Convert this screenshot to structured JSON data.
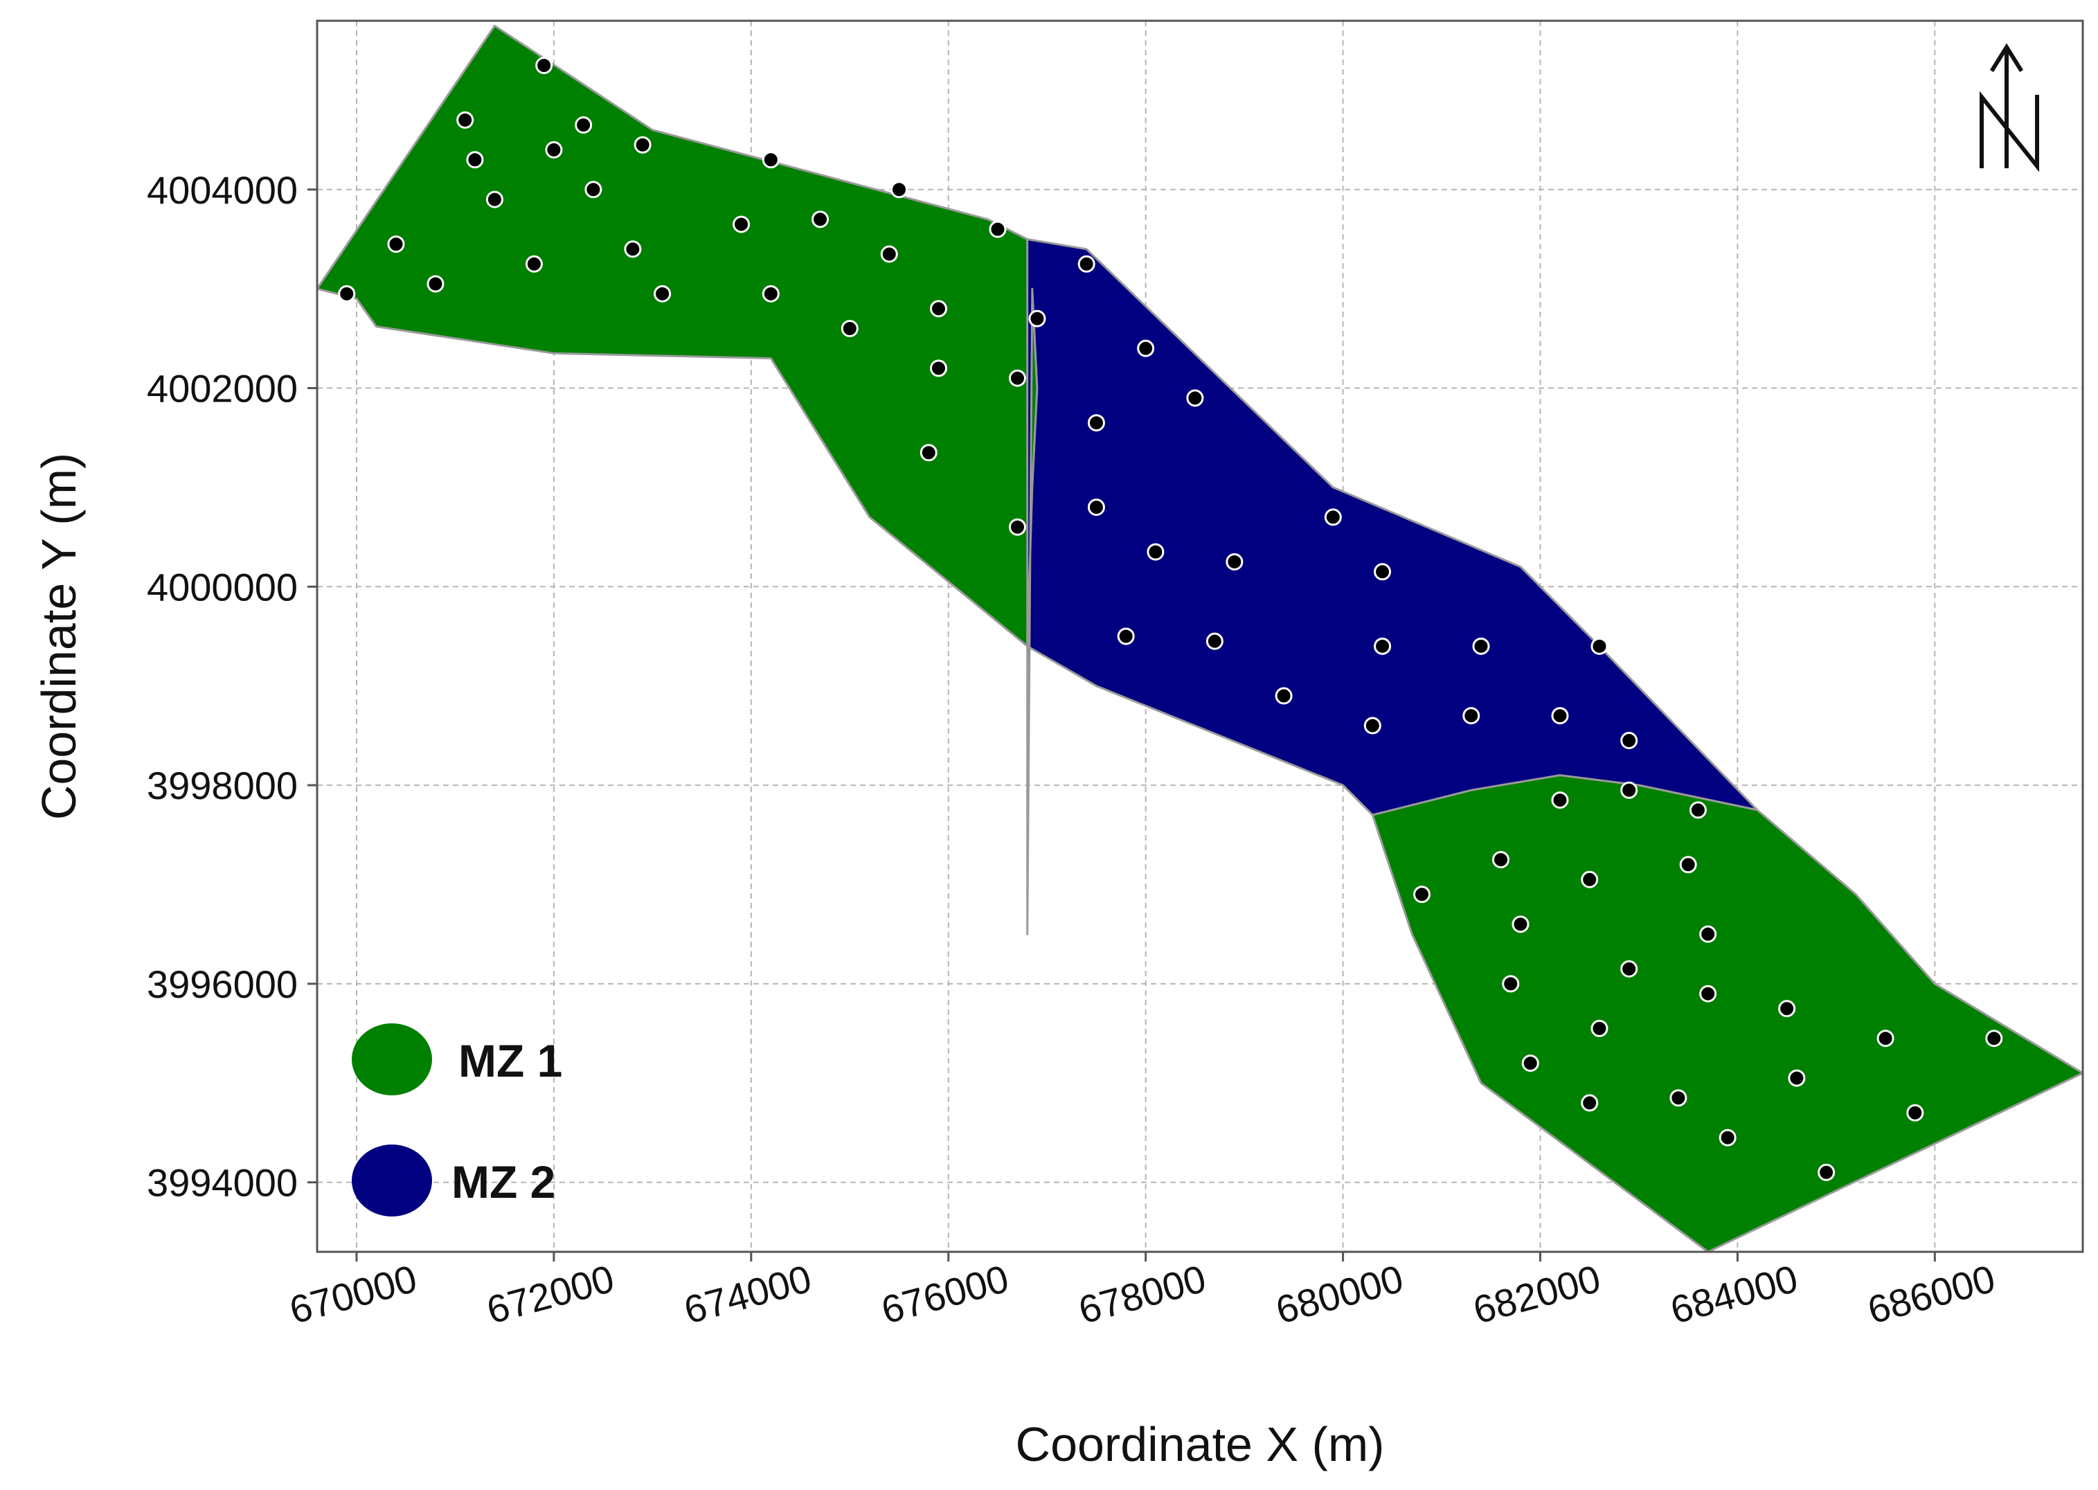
{
  "map": {
    "x_axis": {
      "label": "Coordinate X (m)",
      "ticks": [
        670000,
        672000,
        674000,
        676000,
        678000,
        680000,
        682000,
        684000,
        686000
      ],
      "range": [
        669600,
        687500
      ]
    },
    "y_axis": {
      "label": "Coordinate Y (m)",
      "ticks": [
        4004000,
        4002000,
        4000000,
        3998000,
        3996000,
        3994000
      ],
      "range": [
        3993300,
        4005700
      ]
    },
    "grid": true,
    "north_arrow": {
      "label": "N",
      "icon": "north-arrow-icon"
    },
    "legend": {
      "position": "bottom-left",
      "items": [
        {
          "label": "MZ 1",
          "color": "#008000"
        },
        {
          "label": "MZ 2",
          "color": "#000080"
        }
      ]
    },
    "zones": [
      {
        "name": "MZ 1",
        "color": "#008000",
        "polygon": [
          [
            669600,
            4003000
          ],
          [
            670000,
            4002900
          ],
          [
            670200,
            4002620
          ],
          [
            672000,
            4002350
          ],
          [
            674200,
            4002300
          ],
          [
            675200,
            4000700
          ],
          [
            676800,
            3999400
          ],
          [
            676850,
            4001000
          ],
          [
            676900,
            4002000
          ],
          [
            676850,
            4003000
          ],
          [
            676800,
            4003500
          ],
          [
            676400,
            4003700
          ],
          [
            673000,
            4004600
          ],
          [
            671400,
            4005650
          ],
          [
            669600,
            4003000
          ]
        ]
      },
      {
        "name": "MZ 2",
        "color": "#000080",
        "polygon": [
          [
            676800,
            4003500
          ],
          [
            677400,
            4003400
          ],
          [
            679900,
            4001000
          ],
          [
            681800,
            4000200
          ],
          [
            682500,
            3999500
          ],
          [
            684200,
            3997750
          ],
          [
            683000,
            3998000
          ],
          [
            682200,
            3998100
          ],
          [
            681300,
            3997950
          ],
          [
            680300,
            3997700
          ],
          [
            680000,
            3998000
          ],
          [
            677500,
            3999000
          ],
          [
            676800,
            3999400
          ],
          [
            676850,
            4001000
          ],
          [
            676900,
            4002000
          ],
          [
            676850,
            4003000
          ],
          [
            676800,
            3996500
          ]
        ]
      },
      {
        "name": "MZ 1",
        "color": "#008000",
        "polygon": [
          [
            680300,
            3997700
          ],
          [
            681300,
            3997950
          ],
          [
            682200,
            3998100
          ],
          [
            683000,
            3998000
          ],
          [
            684200,
            3997750
          ],
          [
            685200,
            3996900
          ],
          [
            686000,
            3996000
          ],
          [
            687500,
            3995100
          ],
          [
            683700,
            3993300
          ],
          [
            681400,
            3995000
          ],
          [
            680700,
            3996500
          ],
          [
            680300,
            3997700
          ]
        ]
      }
    ],
    "sample_points": [
      [
        669900,
        4002950
      ],
      [
        670400,
        4003450
      ],
      [
        670800,
        4003050
      ],
      [
        671100,
        4004700
      ],
      [
        671200,
        4004300
      ],
      [
        671400,
        4003900
      ],
      [
        671800,
        4003250
      ],
      [
        671900,
        4005250
      ],
      [
        672000,
        4004400
      ],
      [
        672300,
        4004650
      ],
      [
        672400,
        4004000
      ],
      [
        672800,
        4003400
      ],
      [
        672900,
        4004450
      ],
      [
        673100,
        4002950
      ],
      [
        673900,
        4003650
      ],
      [
        674200,
        4004300
      ],
      [
        674200,
        4002950
      ],
      [
        674700,
        4003700
      ],
      [
        675000,
        4002600
      ],
      [
        675400,
        4003350
      ],
      [
        675500,
        4004000
      ],
      [
        675800,
        4001350
      ],
      [
        675900,
        4002200
      ],
      [
        675900,
        4002800
      ],
      [
        676500,
        4003600
      ],
      [
        676700,
        4002100
      ],
      [
        676700,
        4000600
      ],
      [
        676900,
        4002700
      ],
      [
        677400,
        4003250
      ],
      [
        677500,
        4001650
      ],
      [
        677500,
        4000800
      ],
      [
        677800,
        3999500
      ],
      [
        678000,
        4002400
      ],
      [
        678100,
        4000350
      ],
      [
        678500,
        4001900
      ],
      [
        678700,
        3999450
      ],
      [
        678900,
        4000250
      ],
      [
        679400,
        3998900
      ],
      [
        679900,
        4000700
      ],
      [
        680300,
        3998600
      ],
      [
        680400,
        3999400
      ],
      [
        680400,
        4000150
      ],
      [
        680800,
        3996900
      ],
      [
        681300,
        3998700
      ],
      [
        681400,
        3999400
      ],
      [
        681600,
        3997250
      ],
      [
        681800,
        3996600
      ],
      [
        681700,
        3996000
      ],
      [
        681900,
        3995200
      ],
      [
        682200,
        3998700
      ],
      [
        682200,
        3997850
      ],
      [
        682500,
        3997050
      ],
      [
        682600,
        3999400
      ],
      [
        682500,
        3994800
      ],
      [
        682600,
        3995550
      ],
      [
        682900,
        3996150
      ],
      [
        682900,
        3997950
      ],
      [
        682900,
        3998450
      ],
      [
        683400,
        3994850
      ],
      [
        683500,
        3997200
      ],
      [
        683600,
        3997750
      ],
      [
        683700,
        3996500
      ],
      [
        683700,
        3995900
      ],
      [
        683900,
        3994450
      ],
      [
        684500,
        3995750
      ],
      [
        684600,
        3995050
      ],
      [
        684900,
        3994100
      ],
      [
        685500,
        3995450
      ],
      [
        685800,
        3994700
      ],
      [
        686600,
        3995450
      ]
    ]
  }
}
